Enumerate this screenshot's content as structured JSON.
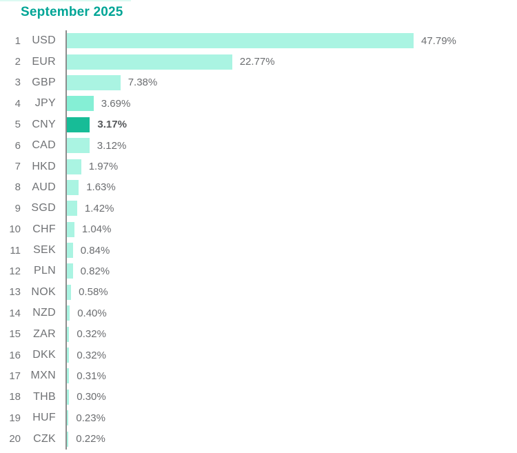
{
  "title": "September 2025",
  "colors": {
    "title": "#00a596",
    "bar_light": "#aaf4e2",
    "bar_highlight": "#17bc97",
    "axis": "#8c8c8c",
    "label_text": "#707275",
    "value_text": "#6b6d70",
    "value_highlight_text": "#55575a"
  },
  "chart_data": {
    "type": "bar",
    "orientation": "horizontal",
    "title": "September 2025",
    "unit": "%",
    "xlim": [
      0,
      50
    ],
    "grid": false,
    "legend": false,
    "highlight_code": "CNY",
    "rows": [
      {
        "rank": 1,
        "code": "USD",
        "value": 47.79,
        "label": "47.79%"
      },
      {
        "rank": 2,
        "code": "EUR",
        "value": 22.77,
        "label": "22.77%"
      },
      {
        "rank": 3,
        "code": "GBP",
        "value": 7.38,
        "label": "7.38%"
      },
      {
        "rank": 4,
        "code": "JPY",
        "value": 3.69,
        "label": "3.69%",
        "bar_color": "#85efd5"
      },
      {
        "rank": 5,
        "code": "CNY",
        "value": 3.17,
        "label": "3.17%",
        "bar_color": "#17bc97",
        "highlight": true
      },
      {
        "rank": 6,
        "code": "CAD",
        "value": 3.12,
        "label": "3.12%"
      },
      {
        "rank": 7,
        "code": "HKD",
        "value": 1.97,
        "label": "1.97%"
      },
      {
        "rank": 8,
        "code": "AUD",
        "value": 1.63,
        "label": "1.63%"
      },
      {
        "rank": 9,
        "code": "SGD",
        "value": 1.42,
        "label": "1.42%"
      },
      {
        "rank": 10,
        "code": "CHF",
        "value": 1.04,
        "label": "1.04%"
      },
      {
        "rank": 11,
        "code": "SEK",
        "value": 0.84,
        "label": "0.84%"
      },
      {
        "rank": 12,
        "code": "PLN",
        "value": 0.82,
        "label": "0.82%"
      },
      {
        "rank": 13,
        "code": "NOK",
        "value": 0.58,
        "label": "0.58%"
      },
      {
        "rank": 14,
        "code": "NZD",
        "value": 0.4,
        "label": "0.40%"
      },
      {
        "rank": 15,
        "code": "ZAR",
        "value": 0.32,
        "label": "0.32%"
      },
      {
        "rank": 16,
        "code": "DKK",
        "value": 0.32,
        "label": "0.32%"
      },
      {
        "rank": 17,
        "code": "MXN",
        "value": 0.31,
        "label": "0.31%"
      },
      {
        "rank": 18,
        "code": "THB",
        "value": 0.3,
        "label": "0.30%"
      },
      {
        "rank": 19,
        "code": "HUF",
        "value": 0.23,
        "label": "0.23%"
      },
      {
        "rank": 20,
        "code": "CZK",
        "value": 0.22,
        "label": "0.22%"
      }
    ]
  }
}
